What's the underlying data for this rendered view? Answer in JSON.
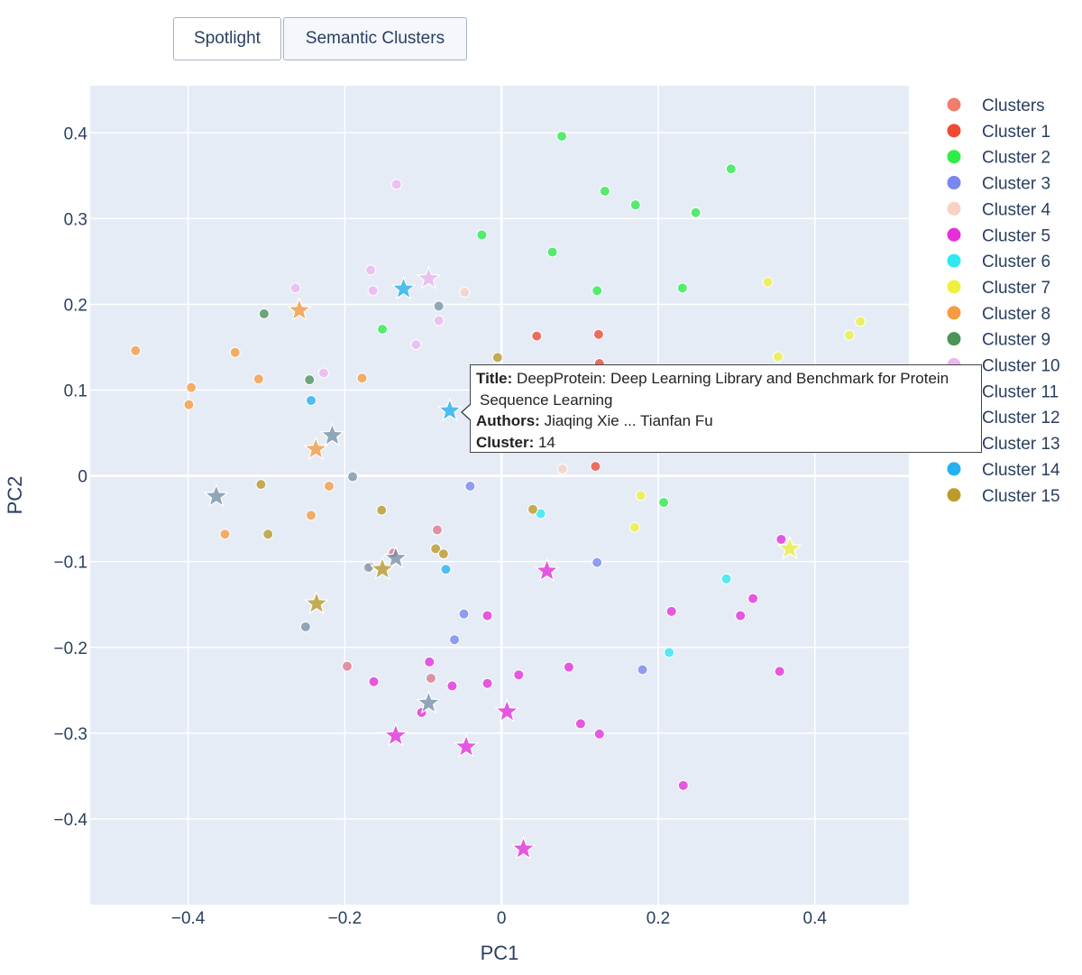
{
  "buttons": {
    "spotlight": "Spotlight",
    "semantic_clusters": "Semantic Clusters"
  },
  "tooltip": {
    "title_label": "Title:",
    "title_line1": "DeepProtein: Deep Learning Library and Benchmark for Protein",
    "title_line2": "Sequence Learning",
    "authors_label": "Authors:",
    "authors": "Jiaqing Xie ... Tianfan Fu",
    "cluster_label": "Cluster:",
    "cluster": "14"
  },
  "chart_data": {
    "type": "scatter",
    "xlabel": "PC1",
    "ylabel": "PC2",
    "xlim": [
      -0.525,
      0.52
    ],
    "ylim": [
      -0.5,
      0.455
    ],
    "xticks": [
      -0.4,
      -0.2,
      0,
      0.2,
      0.4
    ],
    "xtick_labels": [
      "−0.4",
      "−0.2",
      "0",
      "0.2",
      "0.4"
    ],
    "yticks": [
      0.4,
      0.3,
      0.2,
      0.1,
      0,
      -0.1,
      -0.2,
      -0.3,
      -0.4
    ],
    "ytick_labels": [
      "0.4",
      "0.3",
      "0.2",
      "0.1",
      "0",
      "−0.1",
      "−0.2",
      "−0.3",
      "−0.4"
    ],
    "grid": true,
    "legend_position": "right",
    "legend_header": {
      "name": "Clusters",
      "color": "#f0735e"
    },
    "series": [
      {
        "name": "Cluster 1",
        "color": "#ef3b24",
        "points": [
          [
            0.045,
            0.163
          ],
          [
            0.124,
            0.165
          ],
          [
            0.125,
            0.131
          ],
          [
            0.12,
            0.011
          ]
        ],
        "centroids": []
      },
      {
        "name": "Cluster 2",
        "color": "#1dea3a",
        "points": [
          [
            0.077,
            0.396
          ],
          [
            0.293,
            0.358
          ],
          [
            0.132,
            0.332
          ],
          [
            0.171,
            0.316
          ],
          [
            0.248,
            0.307
          ],
          [
            -0.025,
            0.281
          ],
          [
            0.065,
            0.261
          ],
          [
            0.122,
            0.216
          ],
          [
            0.231,
            0.219
          ],
          [
            -0.152,
            0.171
          ],
          [
            0.207,
            -0.031
          ]
        ],
        "centroids": []
      },
      {
        "name": "Cluster 3",
        "color": "#6e7ded",
        "points": [
          [
            -0.04,
            -0.012
          ],
          [
            0.122,
            -0.101
          ],
          [
            -0.048,
            -0.161
          ],
          [
            -0.06,
            -0.191
          ],
          [
            0.18,
            -0.226
          ]
        ],
        "centroids": []
      },
      {
        "name": "Cluster 4",
        "color": "#f6cfbe",
        "points": [
          [
            -0.047,
            0.214
          ],
          [
            0.078,
            0.008
          ]
        ],
        "centroids": []
      },
      {
        "name": "Cluster 5",
        "color": "#e31ed5",
        "points": [
          [
            0.357,
            -0.074
          ],
          [
            0.321,
            -0.143
          ],
          [
            0.305,
            -0.163
          ],
          [
            0.217,
            -0.158
          ],
          [
            0.355,
            -0.228
          ],
          [
            -0.018,
            -0.163
          ],
          [
            -0.092,
            -0.217
          ],
          [
            -0.163,
            -0.24
          ],
          [
            -0.063,
            -0.245
          ],
          [
            -0.018,
            -0.242
          ],
          [
            0.022,
            -0.232
          ],
          [
            0.086,
            -0.223
          ],
          [
            -0.102,
            -0.276
          ],
          [
            0.101,
            -0.289
          ],
          [
            0.125,
            -0.301
          ],
          [
            0.232,
            -0.361
          ]
        ],
        "centroids": [
          [
            0.058,
            -0.111
          ],
          [
            -0.135,
            -0.303
          ],
          [
            -0.045,
            -0.316
          ],
          [
            0.007,
            -0.275
          ],
          [
            0.028,
            -0.435
          ]
        ]
      },
      {
        "name": "Cluster 6",
        "color": "#1de7ef",
        "points": [
          [
            0.05,
            -0.044
          ],
          [
            0.287,
            -0.12
          ],
          [
            0.214,
            -0.206
          ]
        ],
        "centroids": []
      },
      {
        "name": "Cluster 7",
        "color": "#ecf02e",
        "points": [
          [
            0.34,
            0.226
          ],
          [
            0.458,
            0.18
          ],
          [
            0.444,
            0.164
          ],
          [
            0.353,
            0.139
          ],
          [
            0.178,
            -0.023
          ],
          [
            0.17,
            -0.06
          ]
        ],
        "centroids": [
          [
            0.368,
            -0.085
          ]
        ]
      },
      {
        "name": "Cluster 8",
        "color": "#f59331",
        "points": [
          [
            -0.467,
            0.146
          ],
          [
            -0.34,
            0.144
          ],
          [
            -0.31,
            0.113
          ],
          [
            -0.396,
            0.103
          ],
          [
            -0.399,
            0.083
          ],
          [
            -0.178,
            0.114
          ],
          [
            -0.22,
            -0.012
          ],
          [
            -0.243,
            -0.046
          ],
          [
            -0.353,
            -0.068
          ]
        ],
        "centroids": [
          [
            -0.258,
            0.193
          ],
          [
            -0.237,
            0.031
          ]
        ]
      },
      {
        "name": "Cluster 9",
        "color": "#3c8a48",
        "points": [
          [
            -0.303,
            0.189
          ],
          [
            -0.245,
            0.112
          ]
        ],
        "centroids": []
      },
      {
        "name": "Cluster 10",
        "color": "#ebb0ee",
        "points": [
          [
            -0.134,
            0.34
          ],
          [
            -0.167,
            0.24
          ],
          [
            -0.164,
            0.216
          ],
          [
            -0.263,
            0.219
          ],
          [
            -0.08,
            0.181
          ],
          [
            -0.109,
            0.153
          ],
          [
            -0.227,
            0.12
          ]
        ],
        "centroids": [
          [
            -0.093,
            0.23
          ]
        ]
      },
      {
        "name": "Cluster 11",
        "color": "#6e8a9e",
        "points": [
          [
            -0.08,
            0.198
          ],
          [
            -0.19,
            -0.001
          ],
          [
            -0.168,
            -0.106
          ],
          [
            -0.25,
            -0.176
          ]
        ],
        "centroids": [
          [
            -0.216,
            0.047
          ],
          [
            -0.364,
            -0.024
          ],
          [
            -0.135,
            -0.096
          ],
          [
            -0.093,
            -0.265
          ]
        ]
      },
      {
        "name": "Cluster 12",
        "color": "#db6e84",
        "points": [
          [
            -0.082,
            -0.063
          ],
          [
            -0.197,
            -0.222
          ],
          [
            -0.09,
            -0.236
          ],
          [
            -0.138,
            -0.09
          ]
        ],
        "centroids": []
      },
      {
        "name": "Cluster 13",
        "color": "#9aa0aa",
        "points": [
          [
            -0.17,
            -0.107
          ]
        ],
        "centroids": []
      },
      {
        "name": "Cluster 14",
        "color": "#14aaed",
        "points": [
          [
            -0.243,
            0.088
          ],
          [
            -0.071,
            -0.109
          ]
        ],
        "centroids": [
          [
            -0.125,
            0.218
          ],
          [
            -0.066,
            0.076
          ]
        ]
      },
      {
        "name": "Cluster 15",
        "color": "#b69217",
        "points": [
          [
            -0.005,
            0.138
          ],
          [
            -0.307,
            -0.01
          ],
          [
            -0.153,
            -0.04
          ],
          [
            -0.298,
            -0.068
          ],
          [
            0.04,
            -0.039
          ],
          [
            -0.084,
            -0.085
          ],
          [
            -0.074,
            -0.091
          ]
        ],
        "centroids": [
          [
            -0.152,
            -0.109
          ],
          [
            -0.236,
            -0.149
          ]
        ]
      }
    ]
  }
}
